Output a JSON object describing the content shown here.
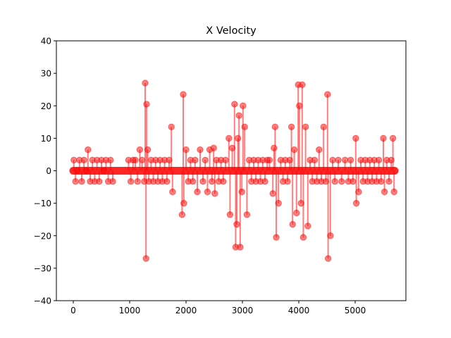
{
  "chart_data": {
    "type": "line",
    "title": "X Velocity",
    "xlabel": "",
    "ylabel": "",
    "xlim": [
      -300,
      5900
    ],
    "ylim": [
      -40,
      40
    ],
    "x_ticks": [
      0,
      1000,
      2000,
      3000,
      4000,
      5000
    ],
    "y_ticks": [
      -40,
      -30,
      -20,
      -10,
      0,
      10,
      20,
      30,
      40
    ],
    "grid": false,
    "legend": "none",
    "colors": {
      "series": "#ff0000",
      "axes": "#000000",
      "background": "#ffffff"
    },
    "x_range": [
      0,
      5700
    ],
    "baseline_value": 0,
    "series": [
      {
        "marker": "circle",
        "style": "stem",
        "x": [
          10,
          40,
          70,
          110,
          150,
          190,
          230,
          260,
          300,
          340,
          380,
          420,
          460,
          500,
          540,
          580,
          620,
          660,
          700,
          980,
          1020,
          1060,
          1100,
          1140,
          1180,
          1220,
          1260,
          1275,
          1290,
          1300,
          1320,
          1340,
          1380,
          1420,
          1460,
          1500,
          1540,
          1580,
          1620,
          1660,
          1700,
          1740,
          1760,
          1930,
          1950,
          1960,
          2000,
          2040,
          2080,
          2120,
          2160,
          2200,
          2250,
          2300,
          2340,
          2380,
          2420,
          2460,
          2490,
          2510,
          2540,
          2580,
          2620,
          2660,
          2700,
          2760,
          2780,
          2820,
          2860,
          2880,
          2900,
          2920,
          2940,
          2960,
          2990,
          3010,
          3040,
          3080,
          3120,
          3160,
          3200,
          3240,
          3280,
          3320,
          3360,
          3400,
          3440,
          3480,
          3540,
          3560,
          3580,
          3600,
          3640,
          3680,
          3720,
          3760,
          3800,
          3840,
          3870,
          3890,
          3920,
          3960,
          3990,
          4010,
          4040,
          4060,
          4080,
          4120,
          4160,
          4200,
          4240,
          4280,
          4320,
          4360,
          4400,
          4440,
          4480,
          4510,
          4520,
          4560,
          4600,
          4640,
          4700,
          4760,
          4820,
          4880,
          4920,
          4960,
          5010,
          5020,
          5060,
          5100,
          5140,
          5180,
          5220,
          5260,
          5300,
          5340,
          5380,
          5420,
          5460,
          5500,
          5520,
          5560,
          5600,
          5640,
          5670,
          5690
        ],
        "y": [
          3.3,
          -3.3,
          0,
          3.3,
          -3.3,
          3.3,
          0,
          6.5,
          -3.3,
          3.3,
          -3.3,
          3.3,
          -3.3,
          3.3,
          0,
          3.3,
          -3.3,
          3.3,
          -3.3,
          3.3,
          -3.3,
          3.3,
          3.3,
          -3.3,
          6.5,
          3.3,
          -3.3,
          27,
          -27,
          20.5,
          6.5,
          -3.3,
          3.3,
          -3.3,
          3.3,
          -3.3,
          3.3,
          -3.3,
          3.3,
          -3.3,
          3.3,
          13.5,
          -6.5,
          -13.5,
          23.5,
          -10,
          6.5,
          -3.3,
          3.3,
          -3.3,
          3.3,
          -6.5,
          6.5,
          -3.3,
          3.3,
          -6.5,
          6.5,
          -3.3,
          7,
          -7,
          3.3,
          -3.3,
          3.3,
          -3.3,
          3.3,
          10,
          -13.5,
          7,
          20.5,
          -23.5,
          -16.5,
          10,
          17,
          -23.5,
          -6.5,
          20,
          13.5,
          -13.5,
          3.3,
          -3.3,
          3.3,
          -3.3,
          3.3,
          -3.3,
          3.3,
          -3.3,
          3.3,
          3.3,
          -7,
          7,
          13.5,
          -20.5,
          -10,
          3.3,
          -3.3,
          3.3,
          -3.3,
          3.3,
          13.5,
          -16.5,
          6.5,
          -13,
          26.5,
          20,
          -10,
          26.5,
          -20.5,
          13.5,
          -17,
          3.3,
          -3.3,
          3.3,
          -3.3,
          6.5,
          -3.3,
          13.5,
          -3.3,
          23.5,
          -27,
          -20,
          3.3,
          -3.3,
          3.3,
          -3.3,
          3.3,
          -3.3,
          3.3,
          -3.3,
          10,
          -10,
          -6.5,
          3.3,
          -3.3,
          3.3,
          -3.3,
          3.3,
          -3.3,
          3.3,
          -3.3,
          3.3,
          -3.3,
          10,
          -6.5,
          3.3,
          -3.3,
          3.3,
          10,
          -6.5
        ]
      }
    ]
  }
}
